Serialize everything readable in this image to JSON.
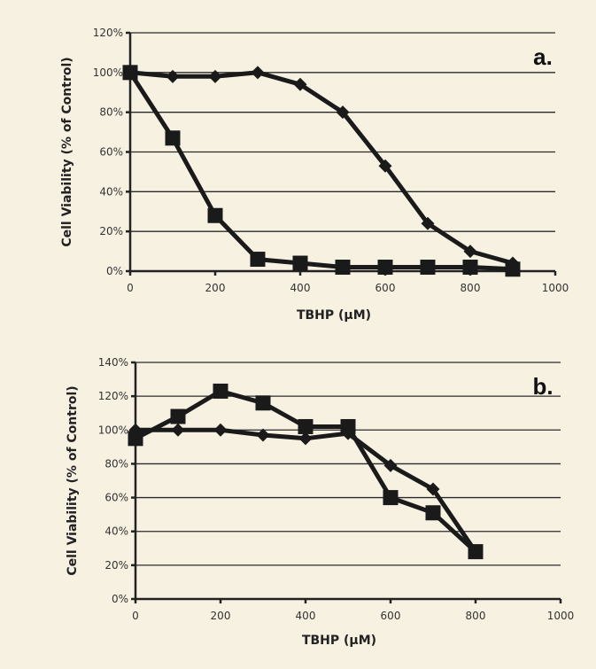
{
  "chart_data": [
    {
      "type": "line",
      "panel_label": "a.",
      "xlabel": "TBHP (μM)",
      "ylabel": "Cell Viability (% of Control)",
      "xlim": [
        0,
        1000
      ],
      "ylim": [
        0,
        120
      ],
      "x_ticks": [
        "0",
        "200",
        "400",
        "600",
        "800",
        "1000"
      ],
      "y_ticks": [
        "0%",
        "20%",
        "40%",
        "60%",
        "80%",
        "100%",
        "120%"
      ],
      "grid": true,
      "series": [
        {
          "marker": "diamond",
          "x": [
            0,
            100,
            200,
            300,
            400,
            500,
            600,
            700,
            800,
            900
          ],
          "y": [
            100,
            98,
            98,
            100,
            94,
            80,
            53,
            24,
            10,
            4
          ]
        },
        {
          "marker": "square",
          "x": [
            0,
            100,
            200,
            300,
            400,
            500,
            600,
            700,
            800,
            900
          ],
          "y": [
            100,
            67,
            28,
            6,
            4,
            2,
            2,
            2,
            2,
            1
          ]
        }
      ]
    },
    {
      "type": "line",
      "panel_label": "b.",
      "xlabel": "TBHP (μM)",
      "ylabel": "Cell Viability (% of Control)",
      "xlim": [
        0,
        1000
      ],
      "ylim": [
        0,
        140
      ],
      "x_ticks": [
        "0",
        "200",
        "400",
        "600",
        "800",
        "1000"
      ],
      "y_ticks": [
        "0%",
        "20%",
        "40%",
        "60%",
        "80%",
        "100%",
        "120%",
        "140%"
      ],
      "grid": true,
      "series": [
        {
          "marker": "diamond",
          "x": [
            0,
            100,
            200,
            300,
            400,
            500,
            600,
            700,
            800
          ],
          "y": [
            100,
            100,
            100,
            97,
            95,
            98,
            79,
            65,
            28
          ]
        },
        {
          "marker": "square",
          "x": [
            0,
            100,
            200,
            300,
            400,
            500,
            600,
            700,
            800
          ],
          "y": [
            95,
            108,
            123,
            116,
            102,
            102,
            60,
            51,
            28
          ]
        }
      ]
    }
  ]
}
